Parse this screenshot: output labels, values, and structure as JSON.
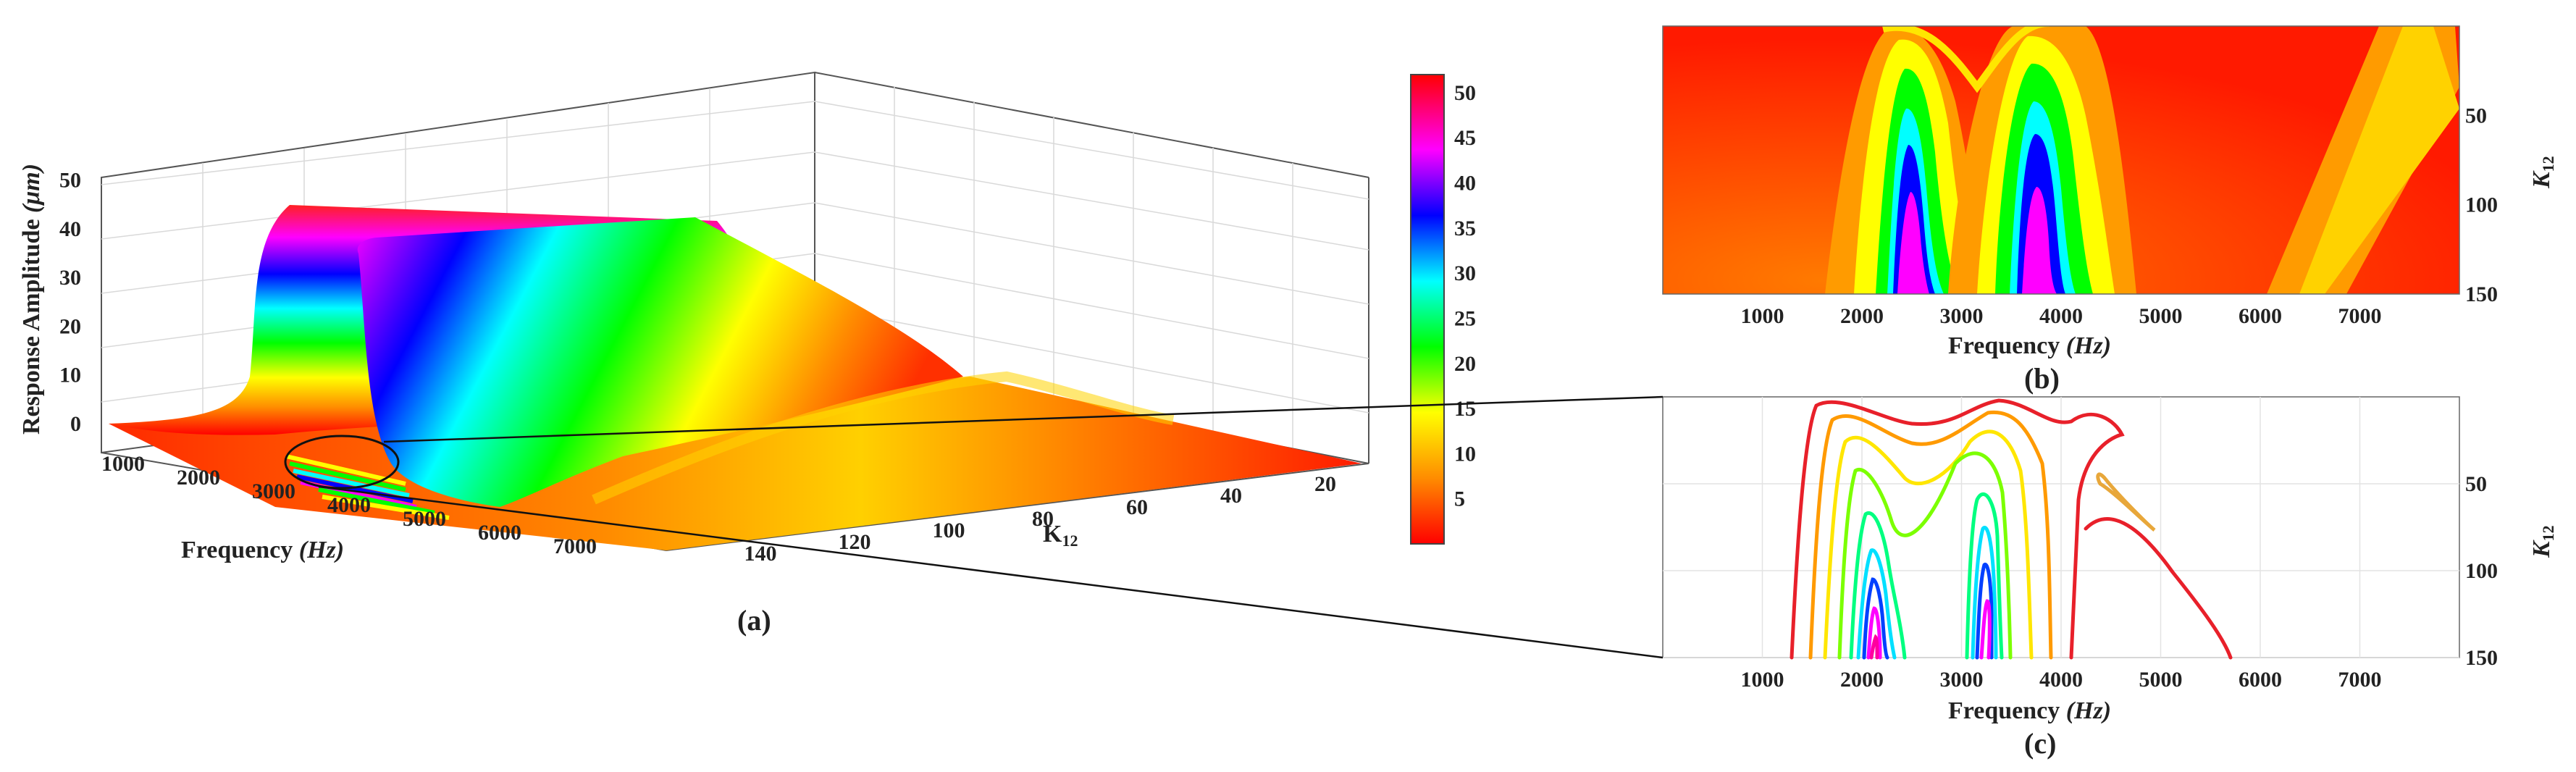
{
  "chart_data": [
    {
      "panel": "(a)",
      "type": "surface",
      "caption": "(a)",
      "xlabel_main": "Frequency",
      "xlabel_unit": "(Hz)",
      "ylabel_main": "K",
      "ylabel_sub": "12",
      "zlabel_main": "Response Amplitude",
      "zlabel_unit": "(μm)",
      "x_ticks": [
        "1000",
        "2000",
        "3000",
        "4000",
        "5000",
        "6000",
        "7000"
      ],
      "y_ticks": [
        "20",
        "40",
        "60",
        "80",
        "100",
        "120",
        "140"
      ],
      "z_ticks": [
        "0",
        "10",
        "20",
        "30",
        "40",
        "50"
      ],
      "zlim": [
        0,
        52
      ],
      "peaks": [
        {
          "frequency": 2500,
          "amplitude": 50
        },
        {
          "frequency": 3600,
          "amplitude": 48
        }
      ]
    },
    {
      "panel": "colorbar",
      "type": "colorbar",
      "ticks": [
        "5",
        "10",
        "15",
        "20",
        "25",
        "30",
        "35",
        "40",
        "45",
        "50"
      ],
      "range": [
        0,
        52
      ],
      "colormap": [
        "#ff0000",
        "#ff8c00",
        "#ffff00",
        "#00ff00",
        "#00ffff",
        "#0000ff",
        "#ff00ff",
        "#ff0000"
      ]
    },
    {
      "panel": "(b)",
      "type": "heatmap",
      "caption": "(b)",
      "xlabel_main": "Frequency",
      "xlabel_unit": "(Hz)",
      "ylabel_main": "K",
      "ylabel_sub": "12",
      "x_ticks": [
        "1000",
        "2000",
        "3000",
        "4000",
        "5000",
        "6000",
        "7000"
      ],
      "y_ticks": [
        "50",
        "100",
        "150"
      ],
      "xlim": [
        0,
        8000
      ],
      "ylim": [
        0,
        150
      ]
    },
    {
      "panel": "(c)",
      "type": "contour",
      "caption": "(c)",
      "xlabel_main": "Frequency",
      "xlabel_unit": "(Hz)",
      "ylabel_main": "K",
      "ylabel_sub": "12",
      "x_ticks": [
        "1000",
        "2000",
        "3000",
        "4000",
        "5000",
        "6000",
        "7000"
      ],
      "y_ticks": [
        "50",
        "100",
        "150"
      ],
      "xlim": [
        0,
        8000
      ],
      "ylim": [
        0,
        150
      ],
      "grid": true
    }
  ]
}
